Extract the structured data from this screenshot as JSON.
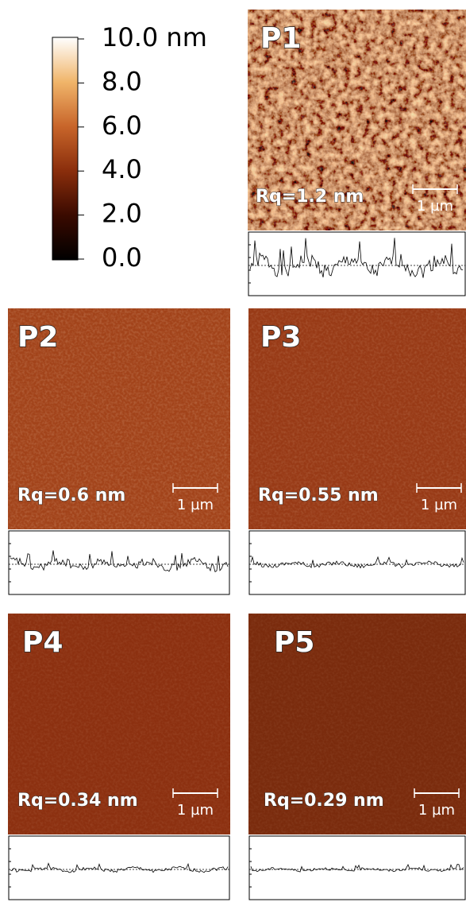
{
  "colorbar": {
    "range": [
      0,
      10
    ],
    "ticks": [
      {
        "value": 10,
        "label": "10.0 nm"
      },
      {
        "value": 8,
        "label": "8.0"
      },
      {
        "value": 6,
        "label": "6.0"
      },
      {
        "value": 4,
        "label": "4.0"
      },
      {
        "value": 2,
        "label": "2.0"
      },
      {
        "value": 0,
        "label": "0.0"
      }
    ]
  },
  "panels": [
    {
      "label": "P1",
      "rq": "Rq=1.2 nm",
      "scale_bar": "1 µm"
    },
    {
      "label": "P2",
      "rq": "Rq=0.6 nm",
      "scale_bar": "1 µm"
    },
    {
      "label": "P3",
      "rq": "Rq=0.55 nm",
      "scale_bar": "1 µm"
    },
    {
      "label": "P4",
      "rq": "Rq=0.34 nm",
      "scale_bar": "1 µm"
    },
    {
      "label": "P5",
      "rq": "Rq=0.29 nm",
      "scale_bar": "1 µm"
    }
  ]
}
